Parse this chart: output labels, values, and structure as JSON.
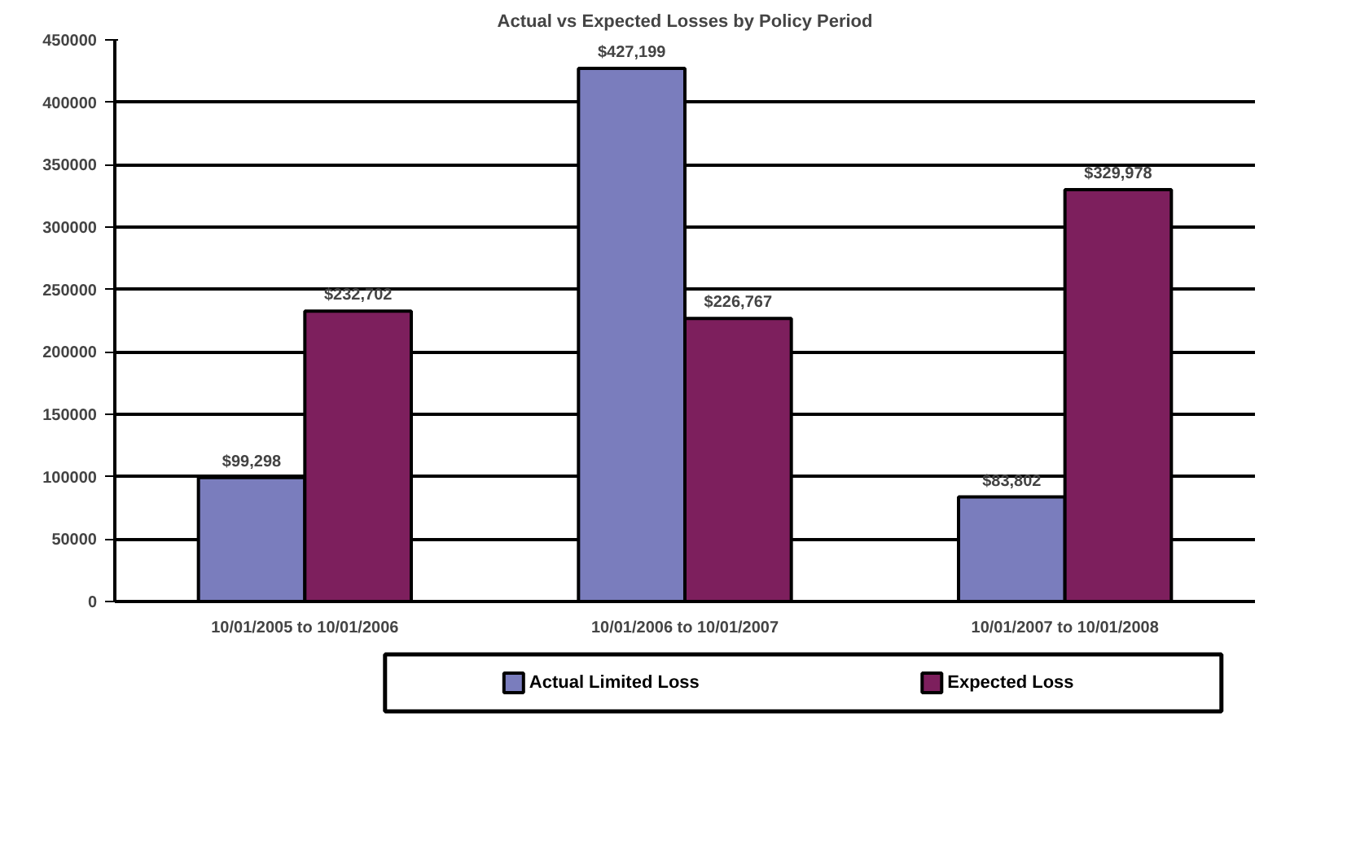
{
  "chart_data": {
    "type": "bar",
    "title": "Actual vs Expected Losses by Policy Period",
    "categories": [
      "10/01/2005 to 10/01/2006",
      "10/01/2006 to 10/01/2007",
      "10/01/2007 to 10/01/2008"
    ],
    "series": [
      {
        "name": "Actual Limited Loss",
        "color": "#7a7dbd",
        "values": [
          99298,
          427199,
          83802
        ],
        "value_labels": [
          "$99,298",
          "$427,199",
          "$83,802"
        ]
      },
      {
        "name": "Expected Loss",
        "color": "#7d1f5d",
        "values": [
          232702,
          226767,
          329978
        ],
        "value_labels": [
          "$232,702",
          "$226,767",
          "$329,978"
        ]
      }
    ],
    "ylim": [
      0,
      450000
    ],
    "yticks": [
      0,
      50000,
      100000,
      150000,
      200000,
      250000,
      300000,
      350000,
      400000,
      450000
    ],
    "grid": "y",
    "legend": "bottom"
  }
}
